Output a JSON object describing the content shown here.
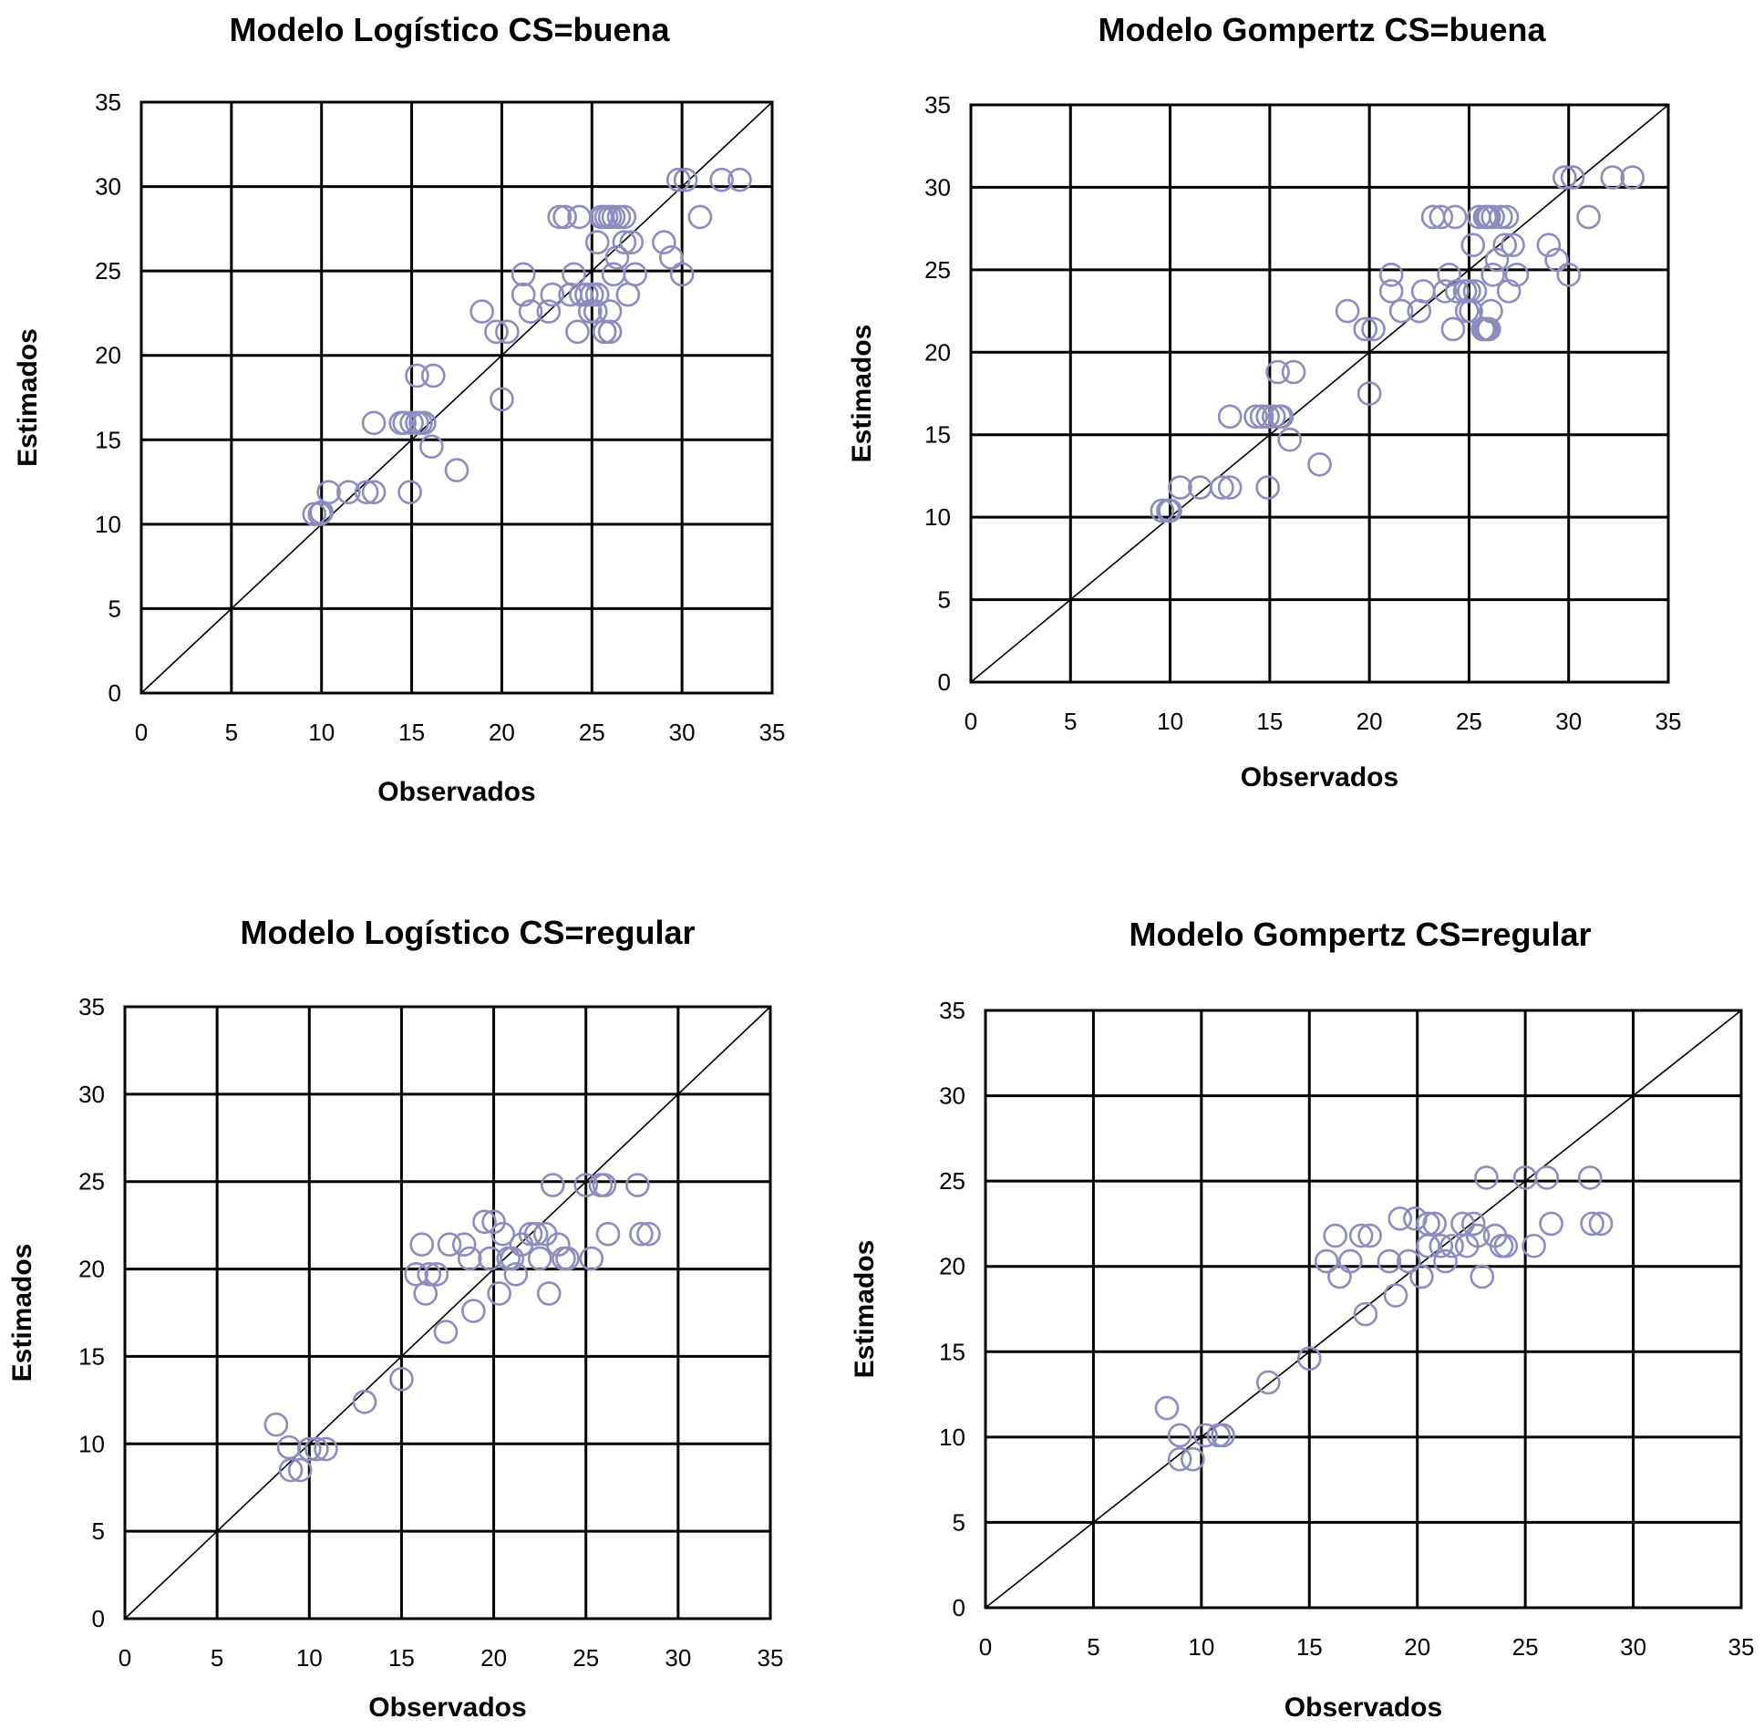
{
  "figure": {
    "marker_color": "#8c8cbf",
    "line_color": "#000000"
  },
  "chart_data": [
    {
      "type": "scatter",
      "title": "Modelo Logístico CS=buena",
      "xlabel": "Observados",
      "ylabel": "Estimados",
      "xlim": [
        0,
        35
      ],
      "ylim": [
        0,
        35
      ],
      "xticks": [
        "0",
        "5",
        "10",
        "15",
        "20",
        "25",
        "30",
        "35"
      ],
      "yticks": [
        "0",
        "5",
        "10",
        "15",
        "20",
        "25",
        "30",
        "35"
      ],
      "grid": true,
      "reference_line": "y = x",
      "series": [
        {
          "x": [
            9.6,
            9.9,
            10.0,
            10.4,
            11.5,
            12.5,
            12.9,
            12.9,
            14.4,
            14.6,
            15.0,
            15.3,
            15.5,
            15.7,
            14.9,
            15.3,
            16.2,
            16.1,
            17.5,
            20.0,
            18.9,
            19.7,
            20.3,
            21.2,
            21.2,
            21.6,
            22.6,
            22.8,
            23.2,
            23.5,
            23.8,
            24.3,
            24.0,
            24.4,
            24.2,
            24.9,
            25.3,
            25.5,
            25.6,
            25.8,
            26.0,
            26.2,
            26.5,
            26.8,
            25.3,
            24.7,
            25.0,
            25.2,
            25.7,
            25.7,
            26.0,
            26.0,
            26.2,
            26.4,
            26.8,
            27.2,
            27.4,
            27.0,
            26.0,
            29.0,
            29.4,
            29.8,
            30.0,
            30.2,
            31.0,
            32.2,
            33.2
          ],
          "y": [
            10.6,
            10.6,
            10.7,
            11.9,
            11.9,
            11.9,
            11.9,
            16.0,
            16.0,
            16.0,
            16.0,
            16.0,
            16.0,
            16.0,
            11.9,
            18.8,
            18.8,
            14.6,
            13.2,
            17.4,
            22.6,
            21.4,
            21.4,
            24.8,
            23.6,
            22.6,
            22.6,
            23.6,
            28.2,
            28.2,
            23.6,
            28.2,
            24.8,
            23.6,
            21.4,
            22.6,
            26.7,
            28.2,
            28.2,
            28.2,
            28.2,
            28.2,
            28.2,
            28.2,
            23.6,
            23.6,
            23.6,
            22.6,
            21.4,
            21.4,
            21.4,
            22.6,
            24.8,
            25.8,
            26.7,
            26.7,
            24.8,
            23.6,
            21.4,
            26.7,
            25.8,
            30.4,
            24.8,
            30.4,
            28.2,
            30.4,
            30.4
          ]
        }
      ]
    },
    {
      "type": "scatter",
      "title": "Modelo Gompertz CS=buena",
      "xlabel": "Observados",
      "ylabel": "Estimados",
      "xlim": [
        0,
        35
      ],
      "ylim": [
        0,
        35
      ],
      "xticks": [
        "0",
        "5",
        "10",
        "15",
        "20",
        "25",
        "30",
        "35"
      ],
      "yticks": [
        "0",
        "5",
        "10",
        "15",
        "20",
        "25",
        "30",
        "35"
      ],
      "grid": true,
      "reference_line": "y = x",
      "series": [
        {
          "x": [
            9.6,
            9.9,
            10.0,
            10.5,
            11.5,
            12.6,
            13.0,
            13.0,
            14.3,
            14.6,
            14.9,
            15.2,
            15.5,
            15.6,
            14.9,
            15.4,
            16.2,
            16.0,
            17.5,
            20.0,
            18.9,
            19.8,
            20.2,
            21.1,
            21.1,
            21.6,
            22.5,
            22.7,
            23.2,
            23.6,
            23.8,
            24.3,
            24.0,
            24.4,
            24.2,
            24.9,
            25.2,
            25.5,
            25.8,
            25.9,
            26.0,
            26.2,
            26.6,
            26.9,
            25.3,
            24.8,
            25.0,
            25.1,
            25.7,
            25.8,
            26.0,
            26.1,
            26.2,
            26.4,
            26.8,
            27.2,
            27.4,
            27.0,
            25.9,
            29.0,
            29.4,
            29.8,
            30.0,
            30.2,
            31.0,
            32.2,
            33.2
          ],
          "y": [
            10.4,
            10.4,
            10.4,
            11.8,
            11.8,
            11.8,
            11.8,
            16.1,
            16.1,
            16.1,
            16.1,
            16.1,
            16.1,
            16.1,
            11.8,
            18.8,
            18.8,
            14.7,
            13.2,
            17.5,
            22.5,
            21.4,
            21.4,
            24.7,
            23.7,
            22.5,
            22.5,
            23.7,
            28.2,
            28.2,
            23.7,
            28.2,
            24.7,
            23.7,
            21.4,
            22.5,
            26.5,
            28.2,
            28.2,
            28.2,
            28.2,
            28.2,
            28.2,
            28.2,
            23.7,
            23.7,
            23.7,
            22.5,
            21.4,
            21.4,
            21.4,
            22.5,
            24.7,
            25.6,
            26.5,
            26.5,
            24.7,
            23.7,
            21.4,
            26.5,
            25.6,
            30.6,
            24.7,
            30.6,
            28.2,
            30.6,
            30.6
          ]
        }
      ]
    },
    {
      "type": "scatter",
      "title": "Modelo Logístico CS=regular",
      "xlabel": "Observados",
      "ylabel": "Estimados",
      "xlim": [
        0,
        35
      ],
      "ylim": [
        0,
        35
      ],
      "xticks": [
        "0",
        "5",
        "10",
        "15",
        "20",
        "25",
        "30",
        "35"
      ],
      "yticks": [
        "0",
        "5",
        "10",
        "15",
        "20",
        "25",
        "30",
        "35"
      ],
      "grid": true,
      "reference_line": "y = x",
      "series": [
        {
          "x": [
            8.2,
            8.9,
            9.0,
            9.5,
            10.0,
            10.4,
            10.9,
            13.0,
            15.0,
            15.8,
            16.1,
            16.3,
            16.5,
            16.9,
            17.4,
            17.6,
            18.4,
            18.7,
            18.9,
            19.5,
            19.8,
            20.0,
            20.3,
            20.5,
            20.8,
            21.0,
            21.2,
            21.5,
            22.0,
            22.3,
            22.5,
            22.8,
            23.0,
            23.2,
            23.5,
            23.8,
            24.0,
            25.0,
            25.3,
            25.8,
            26.0,
            26.2,
            27.8,
            28.0,
            28.4
          ],
          "y": [
            11.1,
            9.8,
            8.5,
            8.5,
            9.7,
            9.7,
            9.7,
            12.4,
            13.7,
            19.7,
            21.4,
            18.6,
            19.7,
            19.7,
            16.4,
            21.4,
            21.4,
            20.6,
            17.6,
            22.7,
            20.6,
            22.7,
            18.6,
            22.0,
            20.6,
            20.6,
            19.7,
            21.4,
            22.0,
            22.0,
            20.6,
            22.0,
            18.6,
            24.8,
            21.4,
            20.6,
            20.6,
            24.8,
            20.6,
            24.8,
            24.8,
            22.0,
            24.8,
            22.0,
            22.0
          ]
        }
      ]
    },
    {
      "type": "scatter",
      "title": "Modelo Gompertz CS=regular",
      "xlabel": "Observados",
      "ylabel": "Estimados",
      "xlim": [
        0,
        35
      ],
      "ylim": [
        0,
        35
      ],
      "xticks": [
        "0",
        "5",
        "10",
        "15",
        "20",
        "25",
        "30",
        "35"
      ],
      "yticks": [
        "0",
        "5",
        "10",
        "15",
        "20",
        "25",
        "30",
        "35"
      ],
      "grid": true,
      "reference_line": "y = x",
      "series": [
        {
          "x": [
            8.4,
            9.0,
            9.0,
            9.6,
            10.2,
            10.8,
            11.0,
            13.1,
            15.0,
            15.8,
            16.2,
            16.4,
            16.9,
            17.4,
            17.6,
            17.8,
            18.7,
            19.0,
            19.2,
            19.6,
            19.9,
            20.2,
            20.5,
            20.5,
            20.8,
            21.1,
            21.3,
            21.6,
            22.1,
            22.3,
            22.6,
            22.8,
            23.0,
            23.2,
            23.6,
            23.9,
            24.1,
            25.0,
            25.4,
            26.0,
            26.2,
            28.0,
            28.1,
            28.5
          ],
          "y": [
            11.7,
            10.1,
            8.7,
            8.7,
            10.1,
            10.1,
            10.1,
            13.2,
            14.6,
            20.3,
            21.8,
            19.4,
            20.3,
            21.8,
            17.2,
            21.8,
            20.3,
            18.3,
            22.8,
            20.3,
            22.8,
            19.4,
            22.5,
            21.2,
            22.5,
            21.2,
            20.3,
            21.2,
            22.5,
            21.2,
            22.5,
            21.8,
            19.4,
            25.2,
            21.8,
            21.2,
            21.2,
            25.2,
            21.2,
            25.2,
            22.5,
            25.2,
            22.5,
            22.5
          ]
        }
      ]
    }
  ]
}
